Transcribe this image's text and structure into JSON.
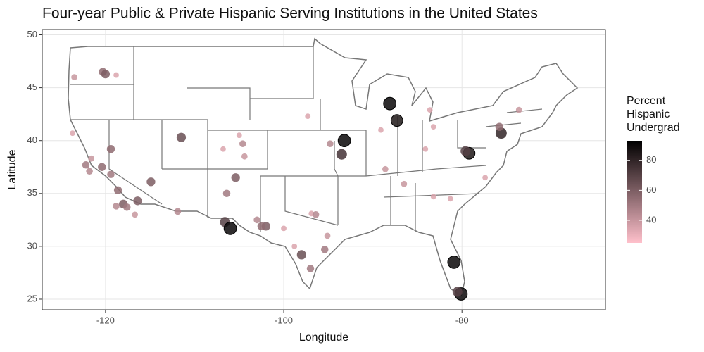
{
  "chart_data": {
    "type": "scatter",
    "title": "Four-year Public & Private Hispanic Serving Institutions in the United States",
    "x_label": "Longitude",
    "y_label": "Latitude",
    "color_label": "Percent Hispanic Undergrad",
    "colors": [
      "#ffc0cb",
      "#000000"
    ],
    "colorlim": [
      25,
      93
    ],
    "colorticks": [
      40,
      60,
      80
    ],
    "xlim": [
      -127.1,
      -63.9
    ],
    "xticks": [
      -120,
      -100,
      -80
    ],
    "ylim": [
      24.0,
      50.5
    ],
    "yticks": [
      25,
      30,
      35,
      40,
      45,
      50
    ],
    "grid": true,
    "x": [
      -120.3,
      -120,
      -118.8,
      -123.5,
      -111.5,
      -123.7,
      -119.4,
      -121.6,
      -122.2,
      -120.4,
      -121.8,
      -119.4,
      -114.9,
      -118.6,
      -116.4,
      -118.0,
      -118.8,
      -117.6,
      -116.7,
      -111.9,
      -105.4,
      -106.4,
      -106.8,
      -104.6,
      -104.4,
      -105.0,
      -106.6,
      -106.0,
      -103.0,
      -102.0,
      -102.5,
      -100.0,
      -96.9,
      -96.4,
      -95.1,
      -95.4,
      -98.0,
      -97.0,
      -98.8,
      -97.3,
      -94.8,
      -93.5,
      -93.2,
      -88.1,
      -87.3,
      -88.6,
      -86.5,
      -89.1,
      -83.6,
      -83.2,
      -84.1,
      -79.2,
      -79.6,
      -75.6,
      -75.8,
      -73.6,
      -81.3,
      -80.9,
      -80.1,
      -80.5,
      -77.4,
      -83.2
    ],
    "values": [
      46.5,
      46.3,
      46.2,
      46.0,
      40.3,
      40.7,
      39.2,
      38.3,
      37.7,
      37.5,
      37.1,
      36.8,
      36.1,
      35.3,
      34.3,
      34.0,
      33.8,
      33.7,
      33.0,
      33.3,
      36.5,
      35.0,
      39.2,
      39.7,
      38.5,
      40.5,
      32.3,
      31.7,
      32.5,
      31.9,
      31.9,
      31.7,
      33.1,
      33.0,
      31.0,
      29.7,
      29.2,
      27.9,
      30.0,
      42.3,
      39.7,
      38.7,
      40.0,
      43.5,
      41.9,
      37.3,
      35.9,
      41.0,
      42.9,
      41.3,
      39.2,
      38.8,
      39.0,
      40.7,
      41.3,
      42.9,
      34.5,
      28.5,
      25.5,
      25.7,
      36.5,
      34.7
    ],
    "percent": [
      55,
      60,
      35,
      40,
      65,
      35,
      55,
      40,
      50,
      55,
      45,
      50,
      60,
      55,
      60,
      60,
      45,
      50,
      40,
      45,
      60,
      50,
      35,
      45,
      40,
      35,
      70,
      90,
      45,
      60,
      55,
      35,
      35,
      45,
      40,
      50,
      65,
      50,
      35,
      35,
      45,
      75,
      90,
      90,
      85,
      40,
      40,
      35,
      35,
      35,
      35,
      85,
      70,
      80,
      55,
      40,
      35,
      90,
      90,
      70,
      35,
      35
    ]
  }
}
